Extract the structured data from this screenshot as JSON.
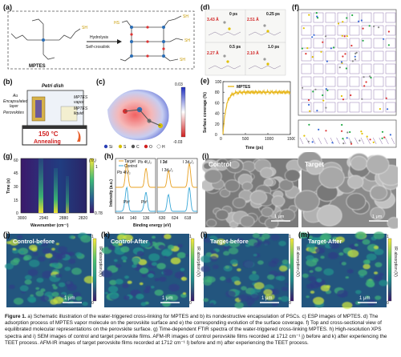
{
  "panels": {
    "a": {
      "label": "(a)",
      "mptes": "MPTES",
      "hydrolysis": "Hydrolysis",
      "crosslink": "Self-crosslink"
    },
    "b": {
      "label": "(b)",
      "petri": "Petri dish",
      "au": "Au",
      "encap": "Encapsulated",
      "layer": "layer",
      "perov": "Perovskites",
      "mptes_vapor": "MPTES",
      "vapor": "vapor",
      "liquid": "MPTES",
      "liquid2": "liquid",
      "temp": "150 °C",
      "anneal": "Annealing"
    },
    "c": {
      "label": "(c)",
      "scale_top": "0.03",
      "scale_bot": "-0.03",
      "legend": [
        "Si",
        "S",
        "C",
        "O",
        "H"
      ]
    },
    "d": {
      "label": "(d)",
      "times": [
        "0 ps",
        "0.25 ps",
        "0.5 ps",
        "1.0 ps"
      ],
      "dists": [
        "3.43 Å",
        "2.51 Å",
        "2.27 Å",
        "2.10 Å"
      ]
    },
    "e": {
      "label": "(e)",
      "legend": "MPTES",
      "ylabel": "Surface coverage (%)",
      "xlabel": "Time (ps)",
      "xticks": [
        "0",
        "500",
        "1000",
        "1500"
      ],
      "yticks": [
        "0",
        "20",
        "40",
        "60",
        "80",
        "100"
      ]
    },
    "f": {
      "label": "(f)"
    },
    "g": {
      "label": "(g)",
      "ylabel": "Time (s)",
      "xlabel": "Wavenumber (cm⁻¹)",
      "xticks": [
        "3000",
        "2940",
        "2880",
        "2820"
      ],
      "yticks": [
        "0",
        "15",
        "30",
        "45",
        "60"
      ],
      "cb_label": "(Tr.)",
      "cb_top": "1",
      "cb_bot": "0.78"
    },
    "h": {
      "label": "(h)",
      "target": "Target",
      "control": "Control",
      "pb4f72": "Pb 4f₇/₂",
      "pb4f52": "Pb 4f₅/₂",
      "pb0": "Pb⁰",
      "i3d": "I 3d",
      "i3d52": "I 3d₅/₂",
      "i3d32": "I 3d₃/₂",
      "xlabel": "Binding energy (eV)",
      "ylabel": "Intensity (a.u.)",
      "xticks": [
        "144",
        "140",
        "136",
        "630",
        "624",
        "618"
      ]
    },
    "i": {
      "label": "(i)",
      "control": "Control",
      "target": "Target",
      "scale": "1 μm"
    },
    "j": {
      "label": "(j)",
      "title": "Control-before",
      "scale": "1 μm",
      "cb": "IR absorption (V)",
      "cb_top": "1",
      "cb_bot": "0"
    },
    "k": {
      "label": "(k)",
      "title": "Control-After",
      "scale": "1 μm",
      "cb": "IR absorption (V)",
      "cb_top": "1",
      "cb_bot": "0"
    },
    "l": {
      "label": "(l)",
      "title": "Target-before",
      "scale": "1 μm",
      "cb": "IR absorption (V)",
      "cb_top": "1",
      "cb_bot": "0"
    },
    "m": {
      "label": "(m)",
      "title": "Target-After",
      "scale": "1 μm",
      "cb": "IR absorption (V)",
      "cb_top": "1",
      "cb_bot": "0"
    }
  },
  "caption": {
    "head": "Figure 1.",
    "text": " a) Schematic illustration of the water-triggered cross-linking for MPTES and b) its nondestructive encapsulation of PSCs. c) ESP images of MPTES. d) The adsorption process of MPTES vapor molecule on the perovskite surface and e) the corresponding evolution of the surface coverage. f) Top and cross-sectional view of equilibrated molecular representations on the perovskite surface. g) Time-dependent FTIR spectra of the water-triggered cross-linking MPTES. h) High-resolution XPS spectra and i) SEM images of control and target perovskite films. AFM-IR images of control perovskite films recorded at 1712 cm⁻¹ j) before and k) after experiencing the TEET process. AFM-IR images of target perovskite films recorded at 1712 cm⁻¹ l) before and m) after experiencing the TEET process."
  }
}
